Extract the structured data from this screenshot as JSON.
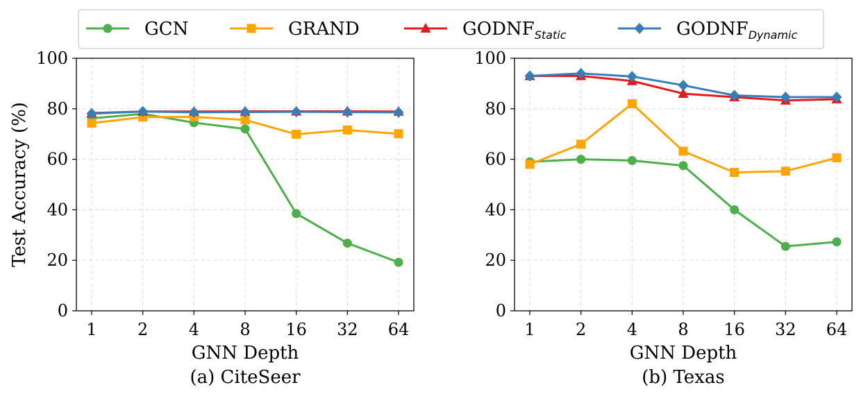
{
  "chart_data": [
    {
      "type": "line",
      "title": "(a) CiteSeer",
      "xlabel": "GNN Depth",
      "ylabel": "Test Accuracy (%)",
      "categories": [
        "1",
        "2",
        "4",
        "8",
        "16",
        "32",
        "64"
      ],
      "ylim": [
        0,
        100
      ],
      "yticks": [
        0,
        20,
        40,
        60,
        80,
        100
      ],
      "grid": true,
      "series": [
        {
          "name": "GCN",
          "values": [
            76.2,
            78.0,
            74.5,
            72.0,
            38.5,
            26.8,
            19.2
          ]
        },
        {
          "name": "GRAND",
          "values": [
            74.3,
            76.7,
            76.8,
            75.6,
            69.9,
            71.6,
            70.1
          ]
        },
        {
          "name": "GODNF_Static",
          "values": [
            78.3,
            78.9,
            78.9,
            79.0,
            79.0,
            79.0,
            78.9
          ]
        },
        {
          "name": "GODNF_Dynamic",
          "values": [
            78.1,
            78.9,
            78.6,
            78.7,
            78.8,
            78.7,
            78.6
          ]
        }
      ]
    },
    {
      "type": "line",
      "title": "(b) Texas",
      "xlabel": "GNN Depth",
      "ylabel": "",
      "categories": [
        "1",
        "2",
        "4",
        "8",
        "16",
        "32",
        "64"
      ],
      "ylim": [
        0,
        100
      ],
      "yticks": [
        0,
        20,
        40,
        60,
        80,
        100
      ],
      "grid": true,
      "series": [
        {
          "name": "GCN",
          "values": [
            59.0,
            60.0,
            59.5,
            57.5,
            40.0,
            25.5,
            27.3
          ]
        },
        {
          "name": "GRAND",
          "values": [
            58.0,
            66.0,
            82.0,
            63.2,
            54.8,
            55.3,
            60.6
          ]
        },
        {
          "name": "GODNF_Static",
          "values": [
            93.0,
            93.0,
            91.0,
            86.0,
            84.6,
            83.3,
            83.8
          ]
        },
        {
          "name": "GODNF_Dynamic",
          "values": [
            93.0,
            94.0,
            92.8,
            89.3,
            85.3,
            84.6,
            84.6
          ]
        }
      ]
    }
  ],
  "legend": {
    "placement": "top-center",
    "entries": [
      {
        "key": "GCN",
        "label": "GCN",
        "sub": "",
        "color": "#4daf4a",
        "marker": "circle"
      },
      {
        "key": "GRAND",
        "label": "GRAND",
        "sub": "",
        "color": "#ffa500",
        "marker": "square"
      },
      {
        "key": "GODNF_Static",
        "label": "GODNF",
        "sub": "Static",
        "color": "#e41a1c",
        "marker": "triangle"
      },
      {
        "key": "GODNF_Dynamic",
        "label": "GODNF",
        "sub": "Dynamic",
        "color": "#377eb8",
        "marker": "diamond"
      }
    ]
  }
}
